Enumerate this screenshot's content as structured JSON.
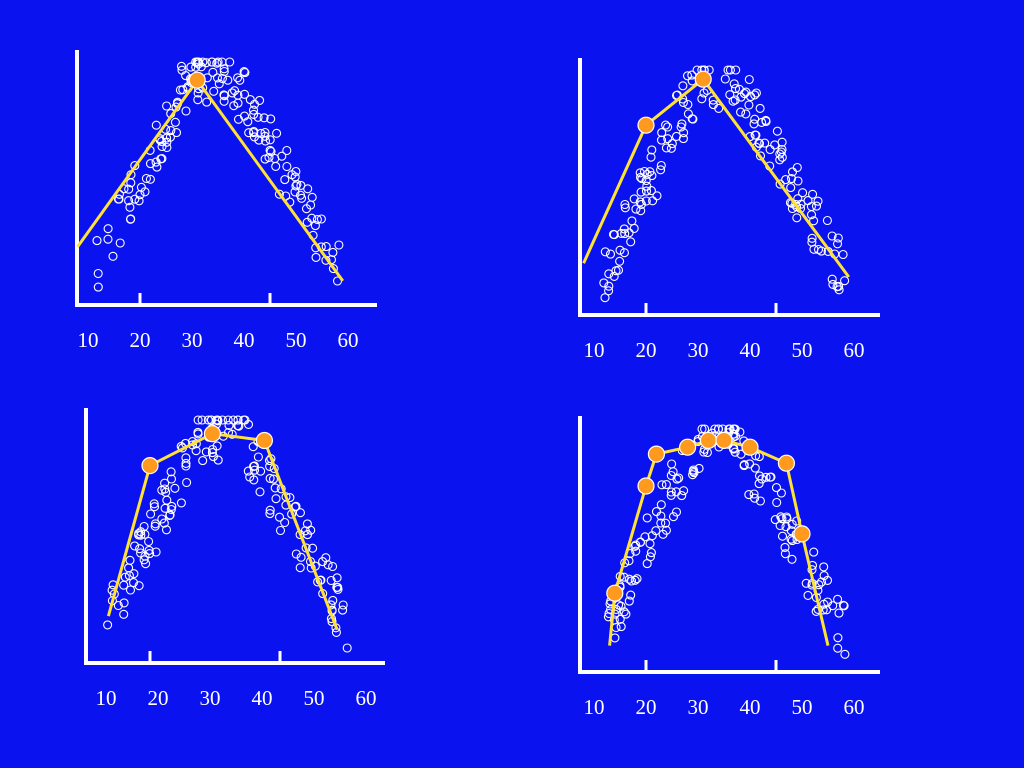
{
  "colors": {
    "background": "#0A12F0",
    "axis": "#FFFFFF",
    "points": "#FFFFFF",
    "fit_line": "#FFE234",
    "knots": "#FF9A1F"
  },
  "chart_data": [
    {
      "type": "scatter",
      "title": "",
      "xlabel": "",
      "ylabel": "",
      "xlim": [
        8,
        65
      ],
      "ylim": [
        0,
        100
      ],
      "x_tick_labels": [
        "10",
        "20",
        "30",
        "40",
        "50",
        "60"
      ],
      "x_tick_marks": [
        20,
        45
      ],
      "grid": false,
      "knots": [
        [
          31,
          92
        ]
      ],
      "fit_line": [
        [
          8,
          19
        ],
        [
          31,
          92
        ],
        [
          59,
          4
        ]
      ]
    },
    {
      "type": "scatter",
      "title": "",
      "xlabel": "",
      "ylabel": "",
      "xlim": [
        8,
        65
      ],
      "ylim": [
        0,
        100
      ],
      "x_tick_labels": [
        "10",
        "20",
        "30",
        "40",
        "50",
        "60"
      ],
      "x_tick_marks": [
        20,
        45
      ],
      "grid": false,
      "knots": [
        [
          20,
          76
        ],
        [
          31,
          96
        ]
      ],
      "fit_line": [
        [
          8,
          16
        ],
        [
          20,
          76
        ],
        [
          31,
          96
        ],
        [
          59,
          10
        ]
      ]
    },
    {
      "type": "scatter",
      "title": "",
      "xlabel": "",
      "ylabel": "",
      "xlim": [
        8,
        65
      ],
      "ylim": [
        0,
        100
      ],
      "x_tick_labels": [
        "10",
        "20",
        "30",
        "40",
        "50",
        "60"
      ],
      "x_tick_marks": [
        20,
        45
      ],
      "grid": false,
      "knots": [
        [
          20,
          80
        ],
        [
          32,
          94
        ],
        [
          42,
          91
        ]
      ],
      "fit_line": [
        [
          12,
          14
        ],
        [
          20,
          80
        ],
        [
          32,
          94
        ],
        [
          42,
          91
        ],
        [
          56,
          8
        ]
      ]
    },
    {
      "type": "scatter",
      "title": "",
      "xlabel": "",
      "ylabel": "",
      "xlim": [
        8,
        65
      ],
      "ylim": [
        0,
        100
      ],
      "x_tick_labels": [
        "10",
        "20",
        "30",
        "40",
        "50",
        "60"
      ],
      "x_tick_marks": [
        20,
        45
      ],
      "grid": false,
      "knots": [
        [
          14,
          28
        ],
        [
          20,
          75
        ],
        [
          22,
          89
        ],
        [
          28,
          92
        ],
        [
          32,
          95
        ],
        [
          35,
          95
        ],
        [
          40,
          92
        ],
        [
          47,
          85
        ],
        [
          50,
          54
        ]
      ],
      "fit_line": [
        [
          13,
          5
        ],
        [
          14,
          28
        ],
        [
          20,
          75
        ],
        [
          22,
          89
        ],
        [
          28,
          92
        ],
        [
          32,
          95
        ],
        [
          35,
          95
        ],
        [
          40,
          92
        ],
        [
          47,
          85
        ],
        [
          50,
          54
        ],
        [
          55,
          5
        ]
      ]
    }
  ]
}
